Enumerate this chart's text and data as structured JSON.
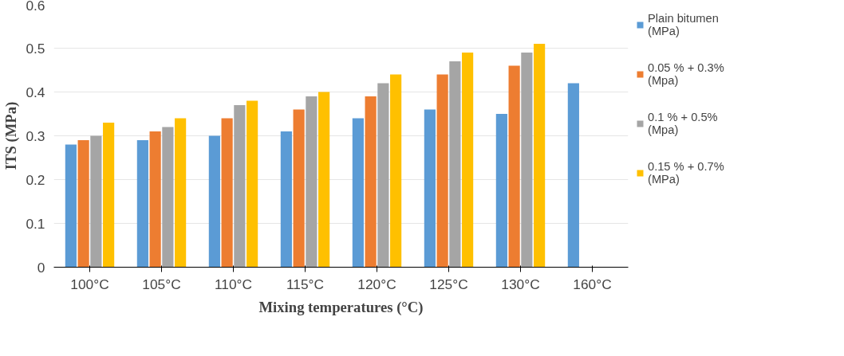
{
  "chart_data": {
    "type": "bar",
    "xlabel": "Mixing temperatures (°C)",
    "ylabel": "ITS (MPa)",
    "categories": [
      "100°C",
      "105°C",
      "110°C",
      "115°C",
      "120°C",
      "125°C",
      "130°C",
      "160°C"
    ],
    "series": [
      {
        "name": "Plain bitumen (MPa)",
        "color": "#5b9bd5",
        "values": [
          0.28,
          0.29,
          0.3,
          0.31,
          0.34,
          0.36,
          0.35,
          0.42
        ]
      },
      {
        "name": "0.05 % + 0.3% (Mpa)",
        "color": "#ed7d31",
        "values": [
          0.29,
          0.31,
          0.34,
          0.36,
          0.39,
          0.44,
          0.46,
          null
        ]
      },
      {
        "name": "0.1 % + 0.5% (Mpa)",
        "color": "#a5a5a5",
        "values": [
          0.3,
          0.32,
          0.37,
          0.39,
          0.42,
          0.47,
          0.49,
          null
        ]
      },
      {
        "name": "0.15 % + 0.7% (MPa)",
        "color": "#ffc000",
        "values": [
          0.33,
          0.34,
          0.38,
          0.4,
          0.44,
          0.49,
          0.51,
          null
        ]
      }
    ],
    "ylim": [
      0,
      0.6
    ],
    "yticks": [
      0,
      0.1,
      0.2,
      0.3,
      0.4,
      0.5,
      0.6
    ],
    "grid": "y",
    "legend": "right"
  }
}
